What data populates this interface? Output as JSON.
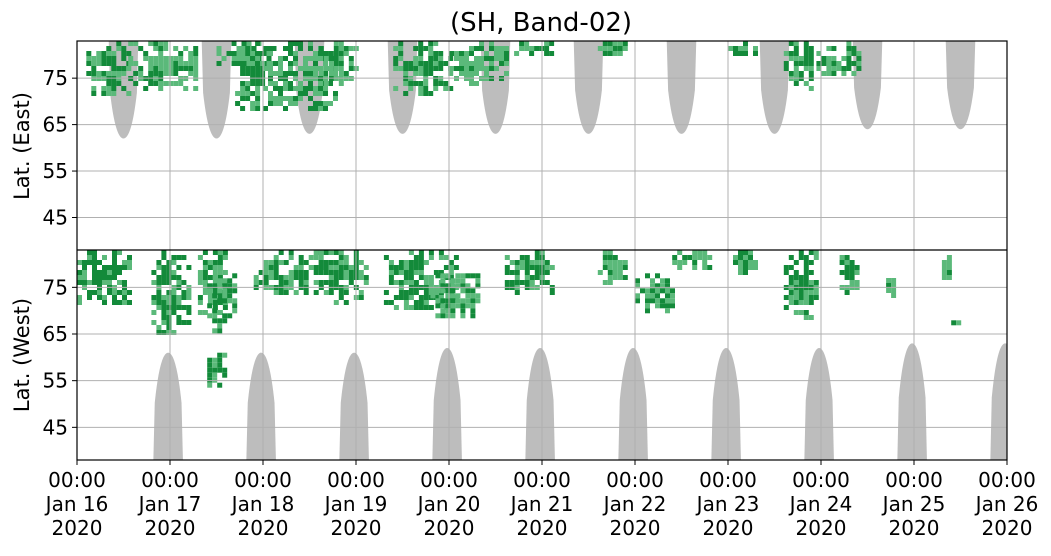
{
  "chart_data": {
    "type": "heatmap",
    "title": "(SH, Band-02)",
    "ylabel_top": "Lat. (East)",
    "ylabel_bottom": "Lat. (West)",
    "xlim": [
      "2020-01-16T00:00",
      "2020-01-26T00:00"
    ],
    "x_ticks": [
      {
        "time": "00:00",
        "date": "Jan 16",
        "year": "2020"
      },
      {
        "time": "00:00",
        "date": "Jan 17",
        "year": "2020"
      },
      {
        "time": "00:00",
        "date": "Jan 18",
        "year": "2020"
      },
      {
        "time": "00:00",
        "date": "Jan 19",
        "year": "2020"
      },
      {
        "time": "00:00",
        "date": "Jan 20",
        "year": "2020"
      },
      {
        "time": "00:00",
        "date": "Jan 21",
        "year": "2020"
      },
      {
        "time": "00:00",
        "date": "Jan 22",
        "year": "2020"
      },
      {
        "time": "00:00",
        "date": "Jan 23",
        "year": "2020"
      },
      {
        "time": "00:00",
        "date": "Jan 24",
        "year": "2020"
      },
      {
        "time": "00:00",
        "date": "Jan 25",
        "year": "2020"
      },
      {
        "time": "00:00",
        "date": "Jan 26",
        "year": "2020"
      }
    ],
    "east_panel": {
      "ylim": [
        38,
        83
      ],
      "y_ticks": [
        45,
        55,
        65,
        75
      ]
    },
    "west_panel": {
      "ylim": [
        83,
        38
      ],
      "y_ticks": [
        75,
        65,
        55,
        45
      ]
    },
    "grid": true,
    "colors": {
      "activity_dark": "#138a3a",
      "activity_light": "#5bb97a",
      "daylight_mask": "#bdbdbd",
      "grid": "#b0b0b0",
      "divider": "#000000"
    },
    "daylight_mask": {
      "east": [
        {
          "day": 0.5,
          "lat_min": 62
        },
        {
          "day": 1.5,
          "lat_min": 62
        },
        {
          "day": 2.5,
          "lat_min": 63
        },
        {
          "day": 3.5,
          "lat_min": 63
        },
        {
          "day": 4.5,
          "lat_min": 63
        },
        {
          "day": 5.5,
          "lat_min": 63
        },
        {
          "day": 6.5,
          "lat_min": 63
        },
        {
          "day": 7.5,
          "lat_min": 63
        },
        {
          "day": 8.5,
          "lat_min": 64
        },
        {
          "day": 9.5,
          "lat_min": 64
        }
      ],
      "west": [
        {
          "day": 0.98,
          "lat_min": 61
        },
        {
          "day": 1.98,
          "lat_min": 61
        },
        {
          "day": 2.98,
          "lat_min": 61
        },
        {
          "day": 3.98,
          "lat_min": 62
        },
        {
          "day": 4.98,
          "lat_min": 62
        },
        {
          "day": 5.98,
          "lat_min": 62
        },
        {
          "day": 6.98,
          "lat_min": 62
        },
        {
          "day": 7.98,
          "lat_min": 62
        },
        {
          "day": 8.98,
          "lat_min": 63
        },
        {
          "day": 9.98,
          "lat_min": 63
        }
      ]
    },
    "activity_regions": [
      {
        "hemisphere": "east",
        "day_start": 0.1,
        "day_end": 0.55,
        "lat_min": 72,
        "lat_max": 83,
        "intensity": "dark"
      },
      {
        "hemisphere": "west",
        "day_start": 0.0,
        "day_end": 0.55,
        "lat_min": 72,
        "lat_max": 83,
        "intensity": "dark"
      },
      {
        "hemisphere": "east",
        "day_start": 0.55,
        "day_end": 1.3,
        "lat_min": 73,
        "lat_max": 83,
        "intensity": "light"
      },
      {
        "hemisphere": "west",
        "day_start": 0.8,
        "day_end": 1.2,
        "lat_min": 65,
        "lat_max": 83,
        "intensity": "dark"
      },
      {
        "hemisphere": "west",
        "day_start": 1.3,
        "day_end": 1.6,
        "lat_min": 70,
        "lat_max": 83,
        "intensity": "light"
      },
      {
        "hemisphere": "east",
        "day_start": 1.5,
        "day_end": 2.1,
        "lat_min": 78,
        "lat_max": 83,
        "intensity": "dark"
      },
      {
        "hemisphere": "west",
        "day_start": 1.4,
        "day_end": 1.7,
        "lat_min": 66,
        "lat_max": 78,
        "intensity": "dark"
      },
      {
        "hemisphere": "west",
        "day_start": 1.4,
        "day_end": 1.6,
        "lat_min": 54,
        "lat_max": 61,
        "intensity": "dark"
      },
      {
        "hemisphere": "east",
        "day_start": 1.7,
        "day_end": 2.0,
        "lat_min": 68,
        "lat_max": 83,
        "intensity": "dark"
      },
      {
        "hemisphere": "east",
        "day_start": 2.0,
        "day_end": 2.8,
        "lat_min": 69,
        "lat_max": 83,
        "intensity": "light"
      },
      {
        "hemisphere": "west",
        "day_start": 1.9,
        "day_end": 2.6,
        "lat_min": 74,
        "lat_max": 83,
        "intensity": "dark"
      },
      {
        "hemisphere": "west",
        "day_start": 2.6,
        "day_end": 3.1,
        "lat_min": 72,
        "lat_max": 83,
        "intensity": "dark"
      },
      {
        "hemisphere": "east",
        "day_start": 2.6,
        "day_end": 3.0,
        "lat_min": 74,
        "lat_max": 83,
        "intensity": "light"
      },
      {
        "hemisphere": "east",
        "day_start": 3.4,
        "day_end": 4.0,
        "lat_min": 72,
        "lat_max": 83,
        "intensity": "dark"
      },
      {
        "hemisphere": "west",
        "day_start": 3.3,
        "day_end": 4.1,
        "lat_min": 71,
        "lat_max": 83,
        "intensity": "dark"
      },
      {
        "hemisphere": "east",
        "day_start": 4.0,
        "day_end": 4.6,
        "lat_min": 74,
        "lat_max": 83,
        "intensity": "light"
      },
      {
        "hemisphere": "west",
        "day_start": 3.8,
        "day_end": 4.3,
        "lat_min": 69,
        "lat_max": 78,
        "intensity": "light"
      },
      {
        "hemisphere": "east",
        "day_start": 4.7,
        "day_end": 5.1,
        "lat_min": 80,
        "lat_max": 83,
        "intensity": "light"
      },
      {
        "hemisphere": "west",
        "day_start": 4.6,
        "day_end": 5.1,
        "lat_min": 74,
        "lat_max": 83,
        "intensity": "dark"
      },
      {
        "hemisphere": "east",
        "day_start": 5.6,
        "day_end": 5.9,
        "lat_min": 80,
        "lat_max": 83,
        "intensity": "light"
      },
      {
        "hemisphere": "west",
        "day_start": 5.6,
        "day_end": 5.9,
        "lat_min": 76,
        "lat_max": 83,
        "intensity": "light"
      },
      {
        "hemisphere": "west",
        "day_start": 6.0,
        "day_end": 6.4,
        "lat_min": 70,
        "lat_max": 78,
        "intensity": "dark"
      },
      {
        "hemisphere": "west",
        "day_start": 6.4,
        "day_end": 6.8,
        "lat_min": 79,
        "lat_max": 83,
        "intensity": "light"
      },
      {
        "hemisphere": "east",
        "day_start": 7.0,
        "day_end": 7.3,
        "lat_min": 80,
        "lat_max": 83,
        "intensity": "dark"
      },
      {
        "hemisphere": "west",
        "day_start": 7.0,
        "day_end": 7.3,
        "lat_min": 78,
        "lat_max": 83,
        "intensity": "light"
      },
      {
        "hemisphere": "east",
        "day_start": 7.6,
        "day_end": 7.95,
        "lat_min": 73,
        "lat_max": 83,
        "intensity": "dark"
      },
      {
        "hemisphere": "west",
        "day_start": 7.6,
        "day_end": 7.95,
        "lat_min": 69,
        "lat_max": 83,
        "intensity": "dark"
      },
      {
        "hemisphere": "east",
        "day_start": 7.95,
        "day_end": 8.4,
        "lat_min": 76,
        "lat_max": 83,
        "intensity": "light"
      },
      {
        "hemisphere": "west",
        "day_start": 8.2,
        "day_end": 8.4,
        "lat_min": 73,
        "lat_max": 83,
        "intensity": "light"
      },
      {
        "hemisphere": "west",
        "day_start": 8.7,
        "day_end": 8.8,
        "lat_min": 73,
        "lat_max": 77,
        "intensity": "light"
      },
      {
        "hemisphere": "west",
        "day_start": 9.3,
        "day_end": 9.4,
        "lat_min": 77,
        "lat_max": 83,
        "intensity": "light"
      },
      {
        "hemisphere": "west",
        "day_start": 9.4,
        "day_end": 9.5,
        "lat_min": 67,
        "lat_max": 69,
        "intensity": "light"
      },
      {
        "hemisphere": "west",
        "day_start": 9.95,
        "day_end": 10.0,
        "lat_min": 80,
        "lat_max": 83,
        "intensity": "light"
      }
    ]
  }
}
